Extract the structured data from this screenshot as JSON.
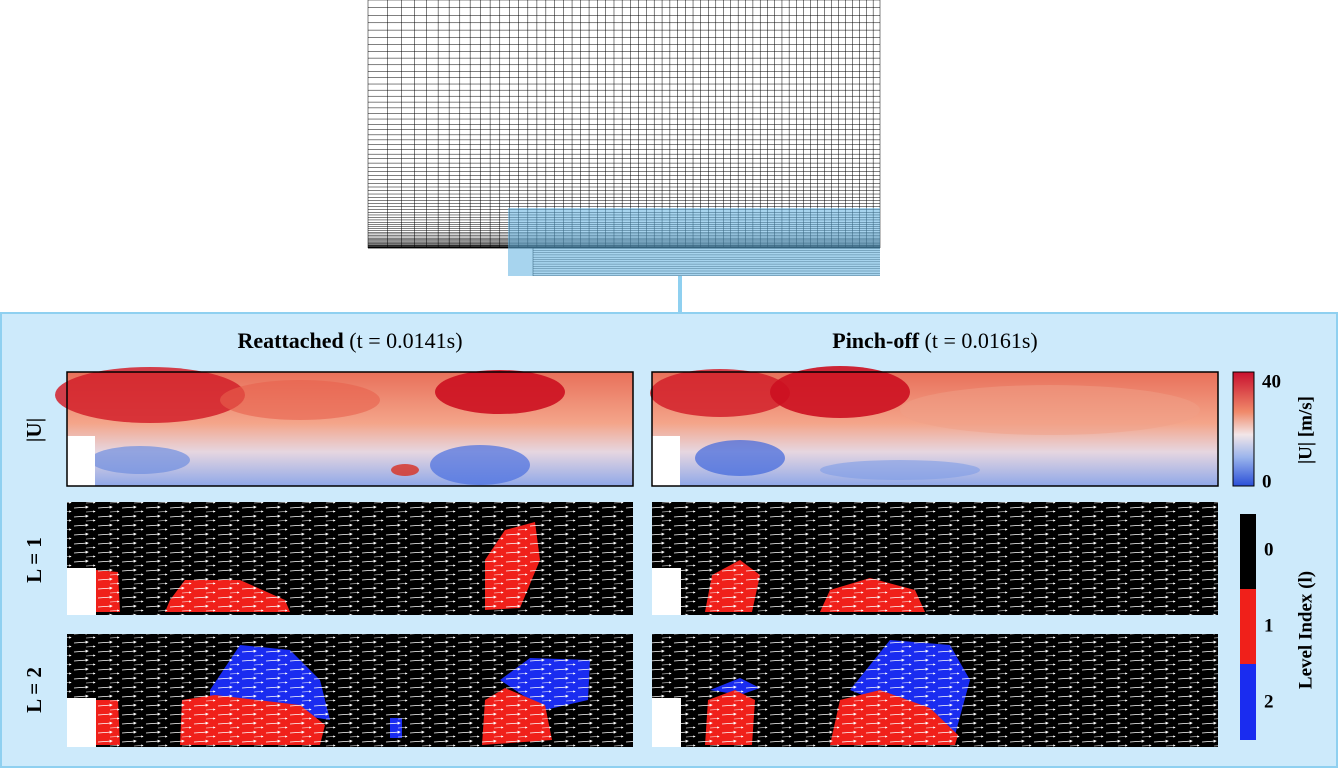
{
  "panels": {
    "columns": [
      {
        "title": "Reattached",
        "time": "(t = 0.0141s)"
      },
      {
        "title": "Pinch-off",
        "time": "(t = 0.0161s)"
      }
    ],
    "rows": [
      "|U|",
      "L = 1",
      "L = 2"
    ],
    "velocity_colorbar": {
      "label": "|U| [m/s]",
      "max": 40,
      "min": 0
    },
    "level_colorbar": {
      "label": "Level Index (l)",
      "levels": [
        0,
        1,
        2
      ]
    }
  }
}
